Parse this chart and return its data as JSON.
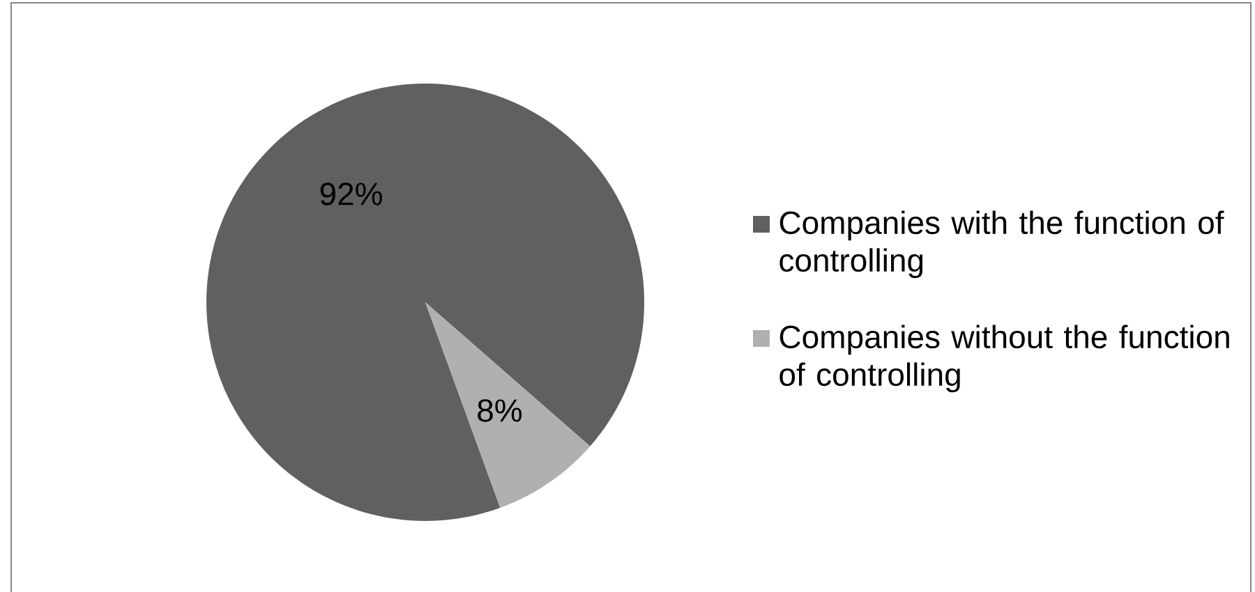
{
  "chart_data": {
    "type": "pie",
    "categories": [
      "Companies with the function of controlling",
      "Companies without the function of controlling"
    ],
    "values": [
      92,
      8
    ],
    "colors": [
      "#606060",
      "#b0b0b0"
    ],
    "value_labels": [
      "92%",
      "8%"
    ],
    "legend": "right"
  }
}
